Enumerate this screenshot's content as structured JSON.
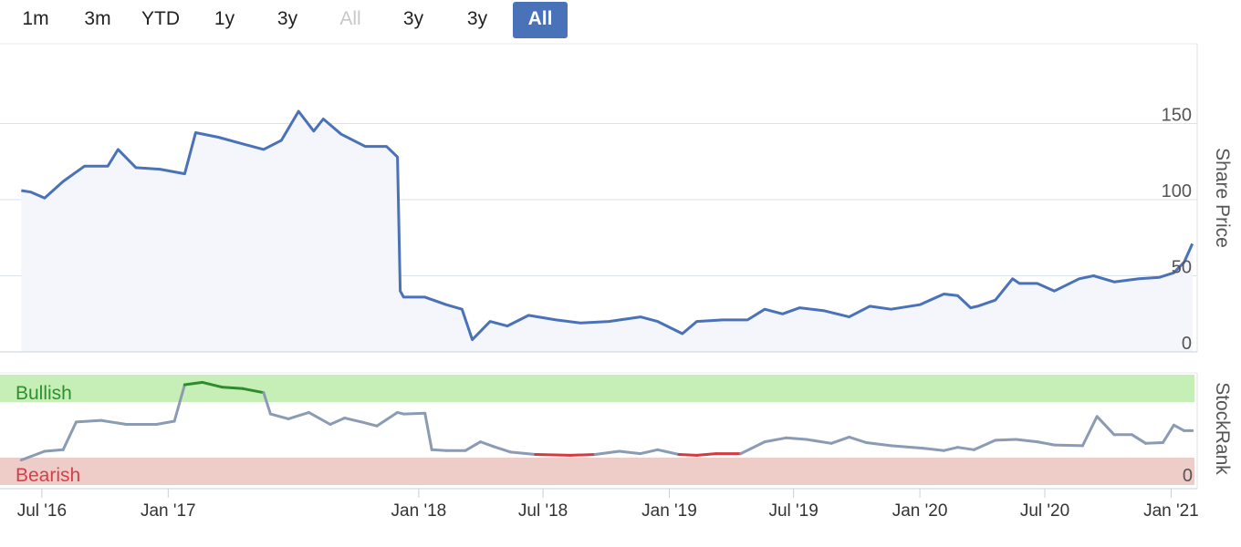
{
  "range_buttons": [
    {
      "label": "1m",
      "state": "normal"
    },
    {
      "label": "3m",
      "state": "normal"
    },
    {
      "label": "YTD",
      "state": "normal"
    },
    {
      "label": "1y",
      "state": "normal"
    },
    {
      "label": "3y",
      "state": "normal"
    },
    {
      "label": "All",
      "state": "disabled"
    },
    {
      "label": "3y",
      "state": "normal"
    },
    {
      "label": "3y",
      "state": "normal"
    },
    {
      "label": "All",
      "state": "active"
    }
  ],
  "colors": {
    "price_line": "#4a72b8",
    "price_fill": "#f4f6fb",
    "bullish_zone": "#c5efb7",
    "bearish_zone": "#eeccc8",
    "bullish_text": "#2f8f2f",
    "bearish_text": "#d4404a",
    "rank_neutral": "#8a9bb3",
    "rank_bullish": "#2e8b2e",
    "rank_bearish": "#d43a40",
    "grid": "#dde3ea",
    "active_button": "#4a72b8"
  },
  "chart_data": [
    {
      "type": "line",
      "ylabel": "Share Price",
      "ylim": [
        0,
        200
      ],
      "y_ticks": [
        "150",
        "100",
        "50",
        "0"
      ],
      "x_ticks": [
        "Jul '16",
        "Jan '17",
        "Jan '18",
        "Jul '18",
        "Jan '19",
        "Jul '19",
        "Jan '20",
        "Jul '20",
        "Jan '21"
      ],
      "series": [
        {
          "x": [
            "2016-06-01",
            "2016-06-15",
            "2016-07-05",
            "2016-08-01",
            "2016-09-01",
            "2016-10-05",
            "2016-10-20",
            "2016-11-15",
            "2016-12-20",
            "2017-01-25",
            "2017-02-10",
            "2017-03-15",
            "2017-04-25",
            "2017-05-20",
            "2017-06-15",
            "2017-07-10",
            "2017-08-01",
            "2017-08-15",
            "2017-09-10",
            "2017-10-15",
            "2017-11-15",
            "2017-12-01",
            "2017-12-05",
            "2017-12-10",
            "2018-01-10",
            "2018-02-10",
            "2018-03-05",
            "2018-03-20",
            "2018-04-15",
            "2018-05-10",
            "2018-06-10",
            "2018-07-20",
            "2018-08-25",
            "2018-10-05",
            "2018-11-20",
            "2018-12-15",
            "2019-01-20",
            "2019-02-10",
            "2019-03-20",
            "2019-04-25",
            "2019-05-20",
            "2019-06-15",
            "2019-07-10",
            "2019-08-15",
            "2019-09-20",
            "2019-10-20",
            "2019-11-20",
            "2020-01-01",
            "2020-02-05",
            "2020-02-25",
            "2020-03-15",
            "2020-03-25",
            "2020-04-20",
            "2020-05-15",
            "2020-05-25",
            "2020-06-20",
            "2020-07-15",
            "2020-08-20",
            "2020-09-10",
            "2020-10-10",
            "2020-11-15",
            "2020-12-15",
            "2021-01-05",
            "2021-01-20",
            "2021-02-01"
          ],
          "values": [
            106,
            105,
            101,
            112,
            122,
            122,
            133,
            121,
            120,
            117,
            144,
            141,
            136,
            133,
            139,
            158,
            145,
            153,
            143,
            135,
            135,
            128,
            40,
            36,
            36,
            31,
            28,
            8,
            20,
            17,
            24,
            21,
            19,
            20,
            23,
            20,
            12,
            20,
            21,
            21,
            28,
            25,
            29,
            27,
            23,
            30,
            28,
            31,
            38,
            37,
            29,
            30,
            34,
            48,
            45,
            45,
            40,
            48,
            50,
            46,
            48,
            49,
            52,
            59,
            71
          ]
        }
      ]
    },
    {
      "type": "line",
      "ylabel": "StockRank",
      "ylim": [
        0,
        100
      ],
      "y_ticks": [
        "0"
      ],
      "zones": [
        "Bullish",
        "Bearish"
      ],
      "series": [
        {
          "x": [
            "2016-06-01",
            "2016-07-05",
            "2016-08-01",
            "2016-08-20",
            "2016-09-25",
            "2016-11-01",
            "2016-12-15",
            "2017-01-10",
            "2017-01-25",
            "2017-02-20",
            "2017-03-20",
            "2017-04-20",
            "2017-05-20",
            "2017-05-30",
            "2017-06-25",
            "2017-07-25",
            "2017-08-25",
            "2017-09-15",
            "2017-10-10",
            "2017-11-01",
            "2017-12-01",
            "2017-12-10",
            "2018-01-10",
            "2018-01-20",
            "2018-02-10",
            "2018-03-10",
            "2018-04-01",
            "2018-04-20",
            "2018-05-15",
            "2018-06-20",
            "2018-08-10",
            "2018-09-15",
            "2018-10-20",
            "2018-11-20",
            "2018-12-15",
            "2019-01-15",
            "2019-02-10",
            "2019-03-10",
            "2019-04-15",
            "2019-05-20",
            "2019-06-20",
            "2019-07-20",
            "2019-08-25",
            "2019-09-20",
            "2019-10-15",
            "2019-11-20",
            "2020-01-05",
            "2020-02-05",
            "2020-02-25",
            "2020-03-20",
            "2020-04-20",
            "2020-05-20",
            "2020-06-20",
            "2020-07-15",
            "2020-08-25",
            "2020-09-15",
            "2020-10-10",
            "2020-11-05",
            "2020-11-25",
            "2020-12-20",
            "2021-01-05",
            "2021-01-20",
            "2021-02-01"
          ],
          "values": [
            -3,
            8,
            10,
            45,
            47,
            42,
            42,
            46,
            92,
            95,
            89,
            87,
            82,
            55,
            49,
            57,
            42,
            50,
            45,
            40,
            57,
            55,
            56,
            10,
            9,
            9,
            20,
            14,
            7,
            4,
            3,
            4,
            8,
            5,
            10,
            4,
            3,
            5,
            5,
            20,
            25,
            23,
            18,
            26,
            19,
            15,
            12,
            9,
            13,
            10,
            22,
            23,
            20,
            16,
            15,
            52,
            29,
            29,
            18,
            19,
            41,
            34,
            34
          ]
        }
      ]
    }
  ]
}
